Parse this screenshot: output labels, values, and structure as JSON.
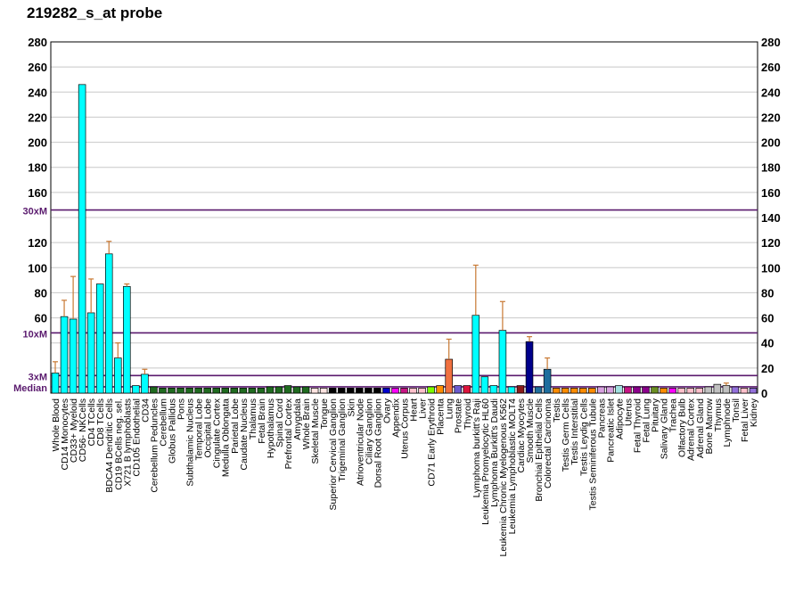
{
  "title": "219282_s_at probe",
  "chart_data": {
    "type": "bar",
    "title": "219282_s_at probe",
    "xlabel": "",
    "ylabel": "",
    "ylim": [
      0,
      280
    ],
    "y_ticks": [
      20,
      40,
      60,
      80,
      100,
      120,
      140,
      160,
      180,
      200,
      220,
      240,
      260,
      280
    ],
    "left_axis_labels": [
      {
        "label": "280",
        "value": 280
      },
      {
        "label": "260",
        "value": 260
      },
      {
        "label": "240",
        "value": 240
      },
      {
        "label": "220",
        "value": 220
      },
      {
        "label": "200",
        "value": 200
      },
      {
        "label": "180",
        "value": 180
      },
      {
        "label": "160",
        "value": 160
      },
      {
        "label": "120",
        "value": 120
      },
      {
        "label": "100",
        "value": 100
      },
      {
        "label": "80",
        "value": 80
      },
      {
        "label": "60",
        "value": 60
      },
      {
        "label": "3xM",
        "value": 14
      },
      {
        "label": "10xM",
        "value": 48
      },
      {
        "label": "30xM",
        "value": 146
      },
      {
        "label": "Median",
        "value": 5
      }
    ],
    "reference_lines": [
      {
        "label": "30xM",
        "value": 146
      },
      {
        "label": "10xM",
        "value": 48
      },
      {
        "label": "3xM",
        "value": 14
      },
      {
        "label": "Median",
        "value": 5
      }
    ],
    "grid": true,
    "categories": [
      {
        "label": "Whole Blood",
        "value": 16,
        "error": 9,
        "color": "#00ffff"
      },
      {
        "label": "CD14 Monocytes",
        "value": 61,
        "error": 13,
        "color": "#00ffff"
      },
      {
        "label": "CD33+ Myeloid",
        "value": 59,
        "error": 34,
        "color": "#00ffff"
      },
      {
        "label": "CD56- NKCells",
        "value": 246,
        "error": 0,
        "color": "#00ffff"
      },
      {
        "label": "CD4 TCells",
        "value": 64,
        "error": 27,
        "color": "#00ffff"
      },
      {
        "label": "CD8 TCells",
        "value": 87,
        "error": 0,
        "color": "#00ffff"
      },
      {
        "label": "BDCA4 Dendritic Cells",
        "value": 111,
        "error": 10,
        "color": "#00ffff"
      },
      {
        "label": "CD19 BCells neg. sel.",
        "value": 28,
        "error": 12,
        "color": "#00ffff"
      },
      {
        "label": "X721 B lymphoblasts",
        "value": 85,
        "error": 2,
        "color": "#00ffff"
      },
      {
        "label": "CD105 Endothelial",
        "value": 6,
        "error": 0,
        "color": "#00ffff"
      },
      {
        "label": "CD34",
        "value": 15,
        "error": 4,
        "color": "#00ffff"
      },
      {
        "label": "Cerebellum Peduncles",
        "value": 5,
        "error": 0,
        "color": "#1f6b1f"
      },
      {
        "label": "Cerebellum",
        "value": 4,
        "error": 0,
        "color": "#1f6b1f"
      },
      {
        "label": "Globus Pallidus",
        "value": 4,
        "error": 0,
        "color": "#1f6b1f"
      },
      {
        "label": "Pons",
        "value": 4,
        "error": 0,
        "color": "#1f6b1f"
      },
      {
        "label": "Subthalamic Nucleus",
        "value": 4,
        "error": 0,
        "color": "#1f6b1f"
      },
      {
        "label": "Temporal Lobe",
        "value": 4,
        "error": 0,
        "color": "#1f6b1f"
      },
      {
        "label": "Occipital Lobe",
        "value": 4,
        "error": 0,
        "color": "#1f6b1f"
      },
      {
        "label": "Cingulate Cortex",
        "value": 4,
        "error": 0,
        "color": "#1f6b1f"
      },
      {
        "label": "Medulla Oblongata",
        "value": 4,
        "error": 0,
        "color": "#1f6b1f"
      },
      {
        "label": "Parietal Lobe",
        "value": 4,
        "error": 0,
        "color": "#1f6b1f"
      },
      {
        "label": "Caudate Nucleus",
        "value": 4,
        "error": 0,
        "color": "#1f6b1f"
      },
      {
        "label": "Thalamus",
        "value": 4,
        "error": 0,
        "color": "#1f6b1f"
      },
      {
        "label": "Fetal Brain",
        "value": 4,
        "error": 0,
        "color": "#1f6b1f"
      },
      {
        "label": "Hypothalamus",
        "value": 5,
        "error": 0,
        "color": "#1f6b1f"
      },
      {
        "label": "Spinal Cord",
        "value": 5,
        "error": 0,
        "color": "#1f6b1f"
      },
      {
        "label": "Prefrontal Cortex",
        "value": 6,
        "error": 0,
        "color": "#1f6b1f"
      },
      {
        "label": "Amygdala",
        "value": 5,
        "error": 0,
        "color": "#1f6b1f"
      },
      {
        "label": "Whole Brain",
        "value": 5,
        "error": 0,
        "color": "#1f6b1f"
      },
      {
        "label": "Skeletal Muscle",
        "value": 4,
        "error": 0,
        "color": "#ffe4e1"
      },
      {
        "label": "Tongue",
        "value": 4,
        "error": 0,
        "color": "#ffe4e1"
      },
      {
        "label": "Superior Cervical Ganglion",
        "value": 4,
        "error": 0,
        "color": "#000000"
      },
      {
        "label": "Trigeminal Ganglion",
        "value": 4,
        "error": 0,
        "color": "#000000"
      },
      {
        "label": "Skin",
        "value": 4,
        "error": 0,
        "color": "#000000"
      },
      {
        "label": "Atrioventricular Node",
        "value": 4,
        "error": 0,
        "color": "#000000"
      },
      {
        "label": "Ciliary Ganglion",
        "value": 4,
        "error": 0,
        "color": "#000000"
      },
      {
        "label": "Dorsal Root Ganglion",
        "value": 4,
        "error": 0,
        "color": "#000000"
      },
      {
        "label": "Ovary",
        "value": 4,
        "error": 0,
        "color": "#0000cd"
      },
      {
        "label": "Appendix",
        "value": 4,
        "error": 0,
        "color": "#ff00ff"
      },
      {
        "label": "Uterus Corpus",
        "value": 4,
        "error": 0,
        "color": "#c71585"
      },
      {
        "label": "Heart",
        "value": 4,
        "error": 0,
        "color": "#ffc0cb"
      },
      {
        "label": "Liver",
        "value": 4,
        "error": 0,
        "color": "#ffc0cb"
      },
      {
        "label": "CD71 Early Erythroid",
        "value": 5,
        "error": 0,
        "color": "#7cfc00"
      },
      {
        "label": "Placenta",
        "value": 6,
        "error": 0,
        "color": "#ff8c00"
      },
      {
        "label": "Lung",
        "value": 27,
        "error": 16,
        "color": "#f07040"
      },
      {
        "label": "Prostate",
        "value": 6,
        "error": 0,
        "color": "#6a5acd"
      },
      {
        "label": "Thyroid",
        "value": 6,
        "error": 0,
        "color": "#dc143c"
      },
      {
        "label": "Lymphoma burkitt's Raji",
        "value": 62,
        "error": 40,
        "color": "#00ffff"
      },
      {
        "label": "Leukemia Promyelocytic HL60",
        "value": 13,
        "error": 0,
        "color": "#00ffff"
      },
      {
        "label": "Lymphoma Burkitt's Daudi",
        "value": 6,
        "error": 0,
        "color": "#00ffff"
      },
      {
        "label": "Leukemia Chronic Myelogenous K562",
        "value": 50,
        "error": 23,
        "color": "#00ffff"
      },
      {
        "label": "Leukemia Lymphoblastic MOLT4",
        "value": 5,
        "error": 0,
        "color": "#00ffff"
      },
      {
        "label": "Cardiac Myocytes",
        "value": 6,
        "error": 0,
        "color": "#8b1a1a"
      },
      {
        "label": "Smooth Muscle",
        "value": 41,
        "error": 4,
        "color": "#00008b"
      },
      {
        "label": "Bronchial Epithelial Cells",
        "value": 5,
        "error": 0,
        "color": "#1e6e9e"
      },
      {
        "label": "Colorectal Carcinoma",
        "value": 19,
        "error": 9,
        "color": "#1e6e9e"
      },
      {
        "label": "Testis",
        "value": 4,
        "error": 0,
        "color": "#ff8c00"
      },
      {
        "label": "Testis Germ Cells",
        "value": 4,
        "error": 0,
        "color": "#ff8c00"
      },
      {
        "label": "Testis Interstitial",
        "value": 4,
        "error": 0,
        "color": "#ff8c00"
      },
      {
        "label": "Testis Leydig Cells",
        "value": 4,
        "error": 0,
        "color": "#ff8c00"
      },
      {
        "label": "Testis Seminiferous Tubule",
        "value": 4,
        "error": 0,
        "color": "#ff8c00"
      },
      {
        "label": "Pancreas",
        "value": 5,
        "error": 0,
        "color": "#d8a0e0"
      },
      {
        "label": "Pancreatic Islet",
        "value": 5,
        "error": 0,
        "color": "#d8a0e0"
      },
      {
        "label": "Adipocyte",
        "value": 6,
        "error": 0,
        "color": "#a0e0e0"
      },
      {
        "label": "Uterus",
        "value": 5,
        "error": 0,
        "color": "#c71585"
      },
      {
        "label": "Fetal Thyroid",
        "value": 5,
        "error": 0,
        "color": "#8b008b"
      },
      {
        "label": "Fetal Lung",
        "value": 5,
        "error": 0,
        "color": "#8b008b"
      },
      {
        "label": "Pituitary",
        "value": 5,
        "error": 0,
        "color": "#6b8e23"
      },
      {
        "label": "Salivary Gland",
        "value": 4,
        "error": 0,
        "color": "#ff8c00"
      },
      {
        "label": "Trachea",
        "value": 4,
        "error": 0,
        "color": "#ff00ff"
      },
      {
        "label": "Olfactory Bulb",
        "value": 4,
        "error": 0,
        "color": "#ffc0cb"
      },
      {
        "label": "Adrenal Cortex",
        "value": 4,
        "error": 0,
        "color": "#ffc0cb"
      },
      {
        "label": "Adrenal Gland",
        "value": 4,
        "error": 0,
        "color": "#ffc0cb"
      },
      {
        "label": "Bone Marrow",
        "value": 5,
        "error": 0,
        "color": "#c0c0c0"
      },
      {
        "label": "Thymus",
        "value": 7,
        "error": 0,
        "color": "#c0c0c0"
      },
      {
        "label": "Lymphnode",
        "value": 6,
        "error": 2,
        "color": "#c0c0c0"
      },
      {
        "label": "Tonsil",
        "value": 5,
        "error": 0,
        "color": "#9370db"
      },
      {
        "label": "Fetal Liver",
        "value": 4,
        "error": 0,
        "color": "#ffc0cb"
      },
      {
        "label": "Kidney",
        "value": 4,
        "error": 0,
        "color": "#9370db"
      }
    ]
  }
}
